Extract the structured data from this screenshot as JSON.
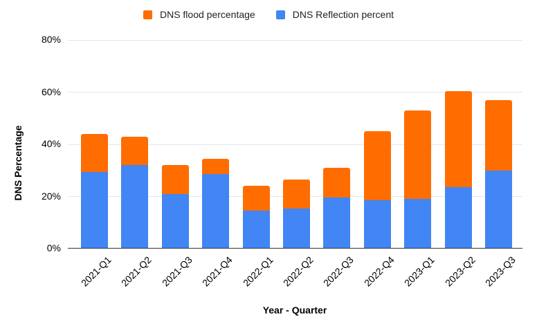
{
  "chart_data": {
    "type": "bar",
    "stacked": true,
    "title": "",
    "xlabel": "Year - Quarter",
    "ylabel": "DNS Percentage",
    "ylim": [
      0,
      80
    ],
    "yticks": [
      0,
      20,
      40,
      60,
      80
    ],
    "ytick_suffix": "%",
    "grid": true,
    "legend_position": "top",
    "categories": [
      "2021-Q1",
      "2021-Q2",
      "2021-Q3",
      "2021-Q4",
      "2022-Q1",
      "2022-Q2",
      "2022-Q3",
      "2022-Q4",
      "2023-Q1",
      "2023-Q2",
      "2023-Q3"
    ],
    "series": [
      {
        "name": "DNS Reflection percent",
        "color": "#4285F4",
        "values": [
          29.5,
          32,
          21,
          28.5,
          14.5,
          15.5,
          19.5,
          18.5,
          19,
          23.5,
          30
        ]
      },
      {
        "name": "DNS flood percentage",
        "color": "#FF6D01",
        "values": [
          14.5,
          11,
          11,
          6,
          9.5,
          11,
          11.5,
          26.5,
          34,
          37,
          27
        ]
      }
    ]
  },
  "legend": {
    "items": [
      {
        "label": "DNS flood percentage",
        "color": "#FF6D01"
      },
      {
        "label": "DNS Reflection percent",
        "color": "#4285F4"
      }
    ]
  },
  "colors": {
    "series_flood": "#FF6D01",
    "series_reflection": "#4285F4",
    "gridline": "#E6E6E6",
    "axis_line": "#333333",
    "text": "#000000"
  }
}
